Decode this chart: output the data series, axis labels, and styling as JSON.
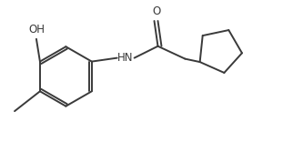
{
  "background_color": "#ffffff",
  "line_color": "#3a3a3a",
  "line_width": 1.4,
  "font_size": 8.5,
  "figsize": [
    3.11,
    1.56
  ],
  "dpi": 100,
  "xlim": [
    0,
    3.11
  ],
  "ylim": [
    0,
    1.56
  ]
}
